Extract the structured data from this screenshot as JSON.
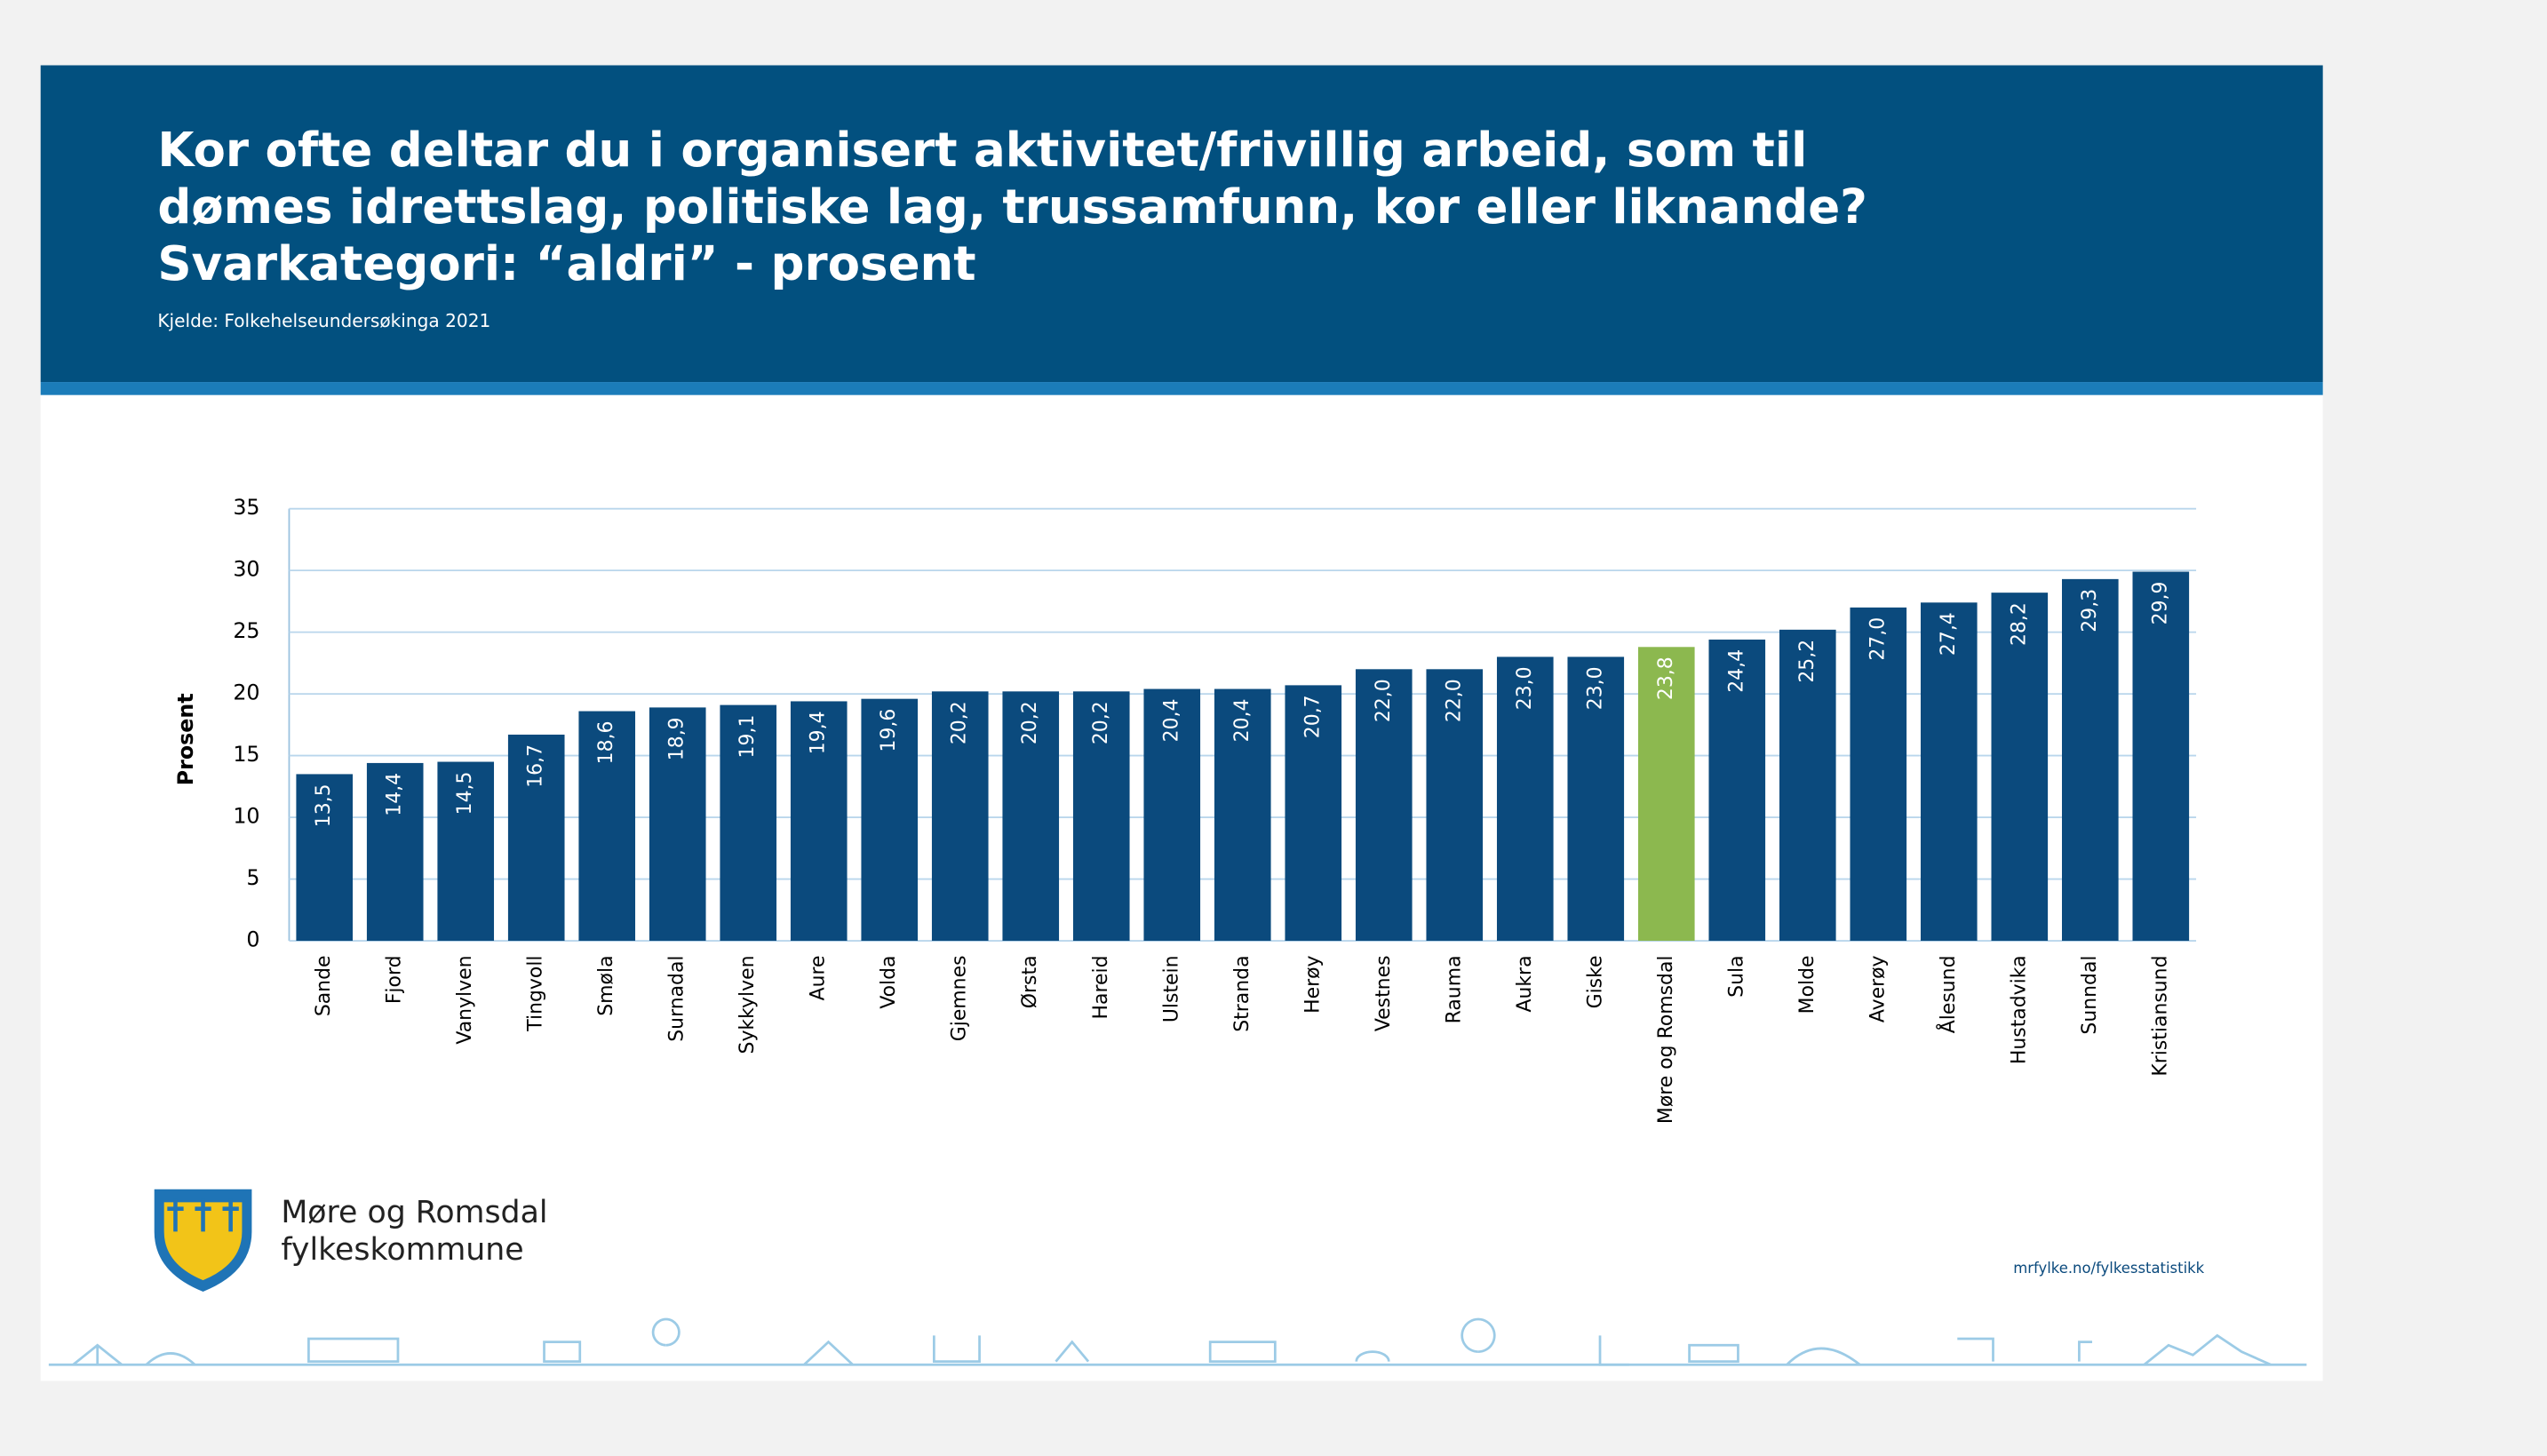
{
  "chart_data": {
    "type": "bar",
    "title": [
      "Kor ofte deltar du i organisert aktivitet/frivillig arbeid, som til",
      "dømes idrettslag, politiske lag, trussamfunn, kor eller liknande?",
      "Svarkategori: “aldri” - prosent"
    ],
    "source": "Kjelde: Folkehelseundersøkinga 2021",
    "ylabel": "Prosent",
    "categories": [
      "Sande",
      "Fjord",
      "Vanylven",
      "Tingvoll",
      "Smøla",
      "Surnadal",
      "Sykkylven",
      "Aure",
      "Volda",
      "Gjemnes",
      "Ørsta",
      "Hareid",
      "Ulstein",
      "Stranda",
      "Herøy",
      "Vestnes",
      "Rauma",
      "Aukra",
      "Giske",
      "Møre og Romsdal",
      "Sula",
      "Molde",
      "Averøy",
      "Ålesund",
      "Hustadvika",
      "Sunndal",
      "Kristiansund"
    ],
    "values": [
      13.5,
      14.4,
      14.5,
      16.7,
      18.6,
      18.9,
      19.1,
      19.4,
      19.6,
      20.2,
      20.2,
      20.2,
      20.4,
      20.4,
      20.7,
      22.0,
      22.0,
      23.0,
      23.0,
      23.8,
      24.4,
      25.2,
      27.0,
      27.4,
      28.2,
      29.3,
      29.9
    ],
    "value_labels": [
      "13,5",
      "14,4",
      "14,5",
      "16,7",
      "18,6",
      "18,9",
      "19,1",
      "19,4",
      "19,6",
      "20,2",
      "20,2",
      "20,2",
      "20,4",
      "20,4",
      "20,7",
      "22,0",
      "22,0",
      "23,0",
      "23,0",
      "23,8",
      "24,4",
      "25,2",
      "27,0",
      "27,4",
      "28,2",
      "29,3",
      "29,9"
    ],
    "colors": [
      "#0b4a7d",
      "#0b4a7d",
      "#0b4a7d",
      "#0b4a7d",
      "#0b4a7d",
      "#0b4a7d",
      "#0b4a7d",
      "#0b4a7d",
      "#0b4a7d",
      "#0b4a7d",
      "#0b4a7d",
      "#0b4a7d",
      "#0b4a7d",
      "#0b4a7d",
      "#0b4a7d",
      "#0b4a7d",
      "#0b4a7d",
      "#0b4a7d",
      "#0b4a7d",
      "#8cb84f",
      "#0b4a7d",
      "#0b4a7d",
      "#0b4a7d",
      "#0b4a7d",
      "#0b4a7d",
      "#0b4a7d",
      "#0b4a7d"
    ],
    "ylim": [
      0,
      35
    ],
    "yticks": [
      0,
      5,
      10,
      15,
      20,
      25,
      30,
      35
    ],
    "grid": true,
    "logo_text": [
      "Møre og Romsdal",
      "fylkeskommune"
    ],
    "url": "mrfylke.no/fylkesstatistikk"
  }
}
